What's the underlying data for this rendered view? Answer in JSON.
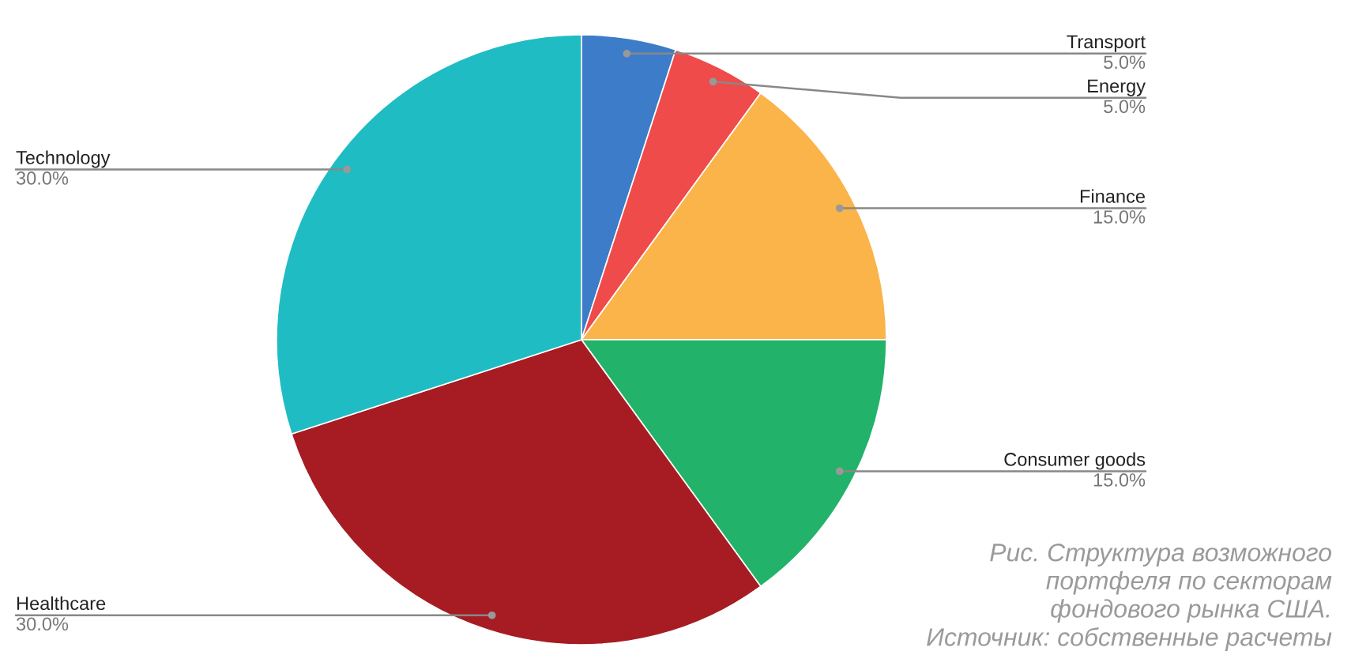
{
  "chart_data": {
    "type": "pie",
    "categories": [
      "Transport",
      "Energy",
      "Finance",
      "Consumer goods",
      "Healthcare",
      "Technology"
    ],
    "values": [
      5,
      5,
      15,
      15,
      30,
      30
    ],
    "value_labels": [
      "5.0%",
      "5.0%",
      "15.0%",
      "15.0%",
      "30.0%",
      "30.0%"
    ],
    "colors": [
      "#3d7cc9",
      "#ef4b4b",
      "#fbb44a",
      "#22b26a",
      "#a61c22",
      "#1fbcc4"
    ],
    "legend": false,
    "annotations": [
      "Рис. Структура возможного\nпортфеля по секторам\nфондового рынка США.\nИсточник: собственные расчеты"
    ]
  }
}
